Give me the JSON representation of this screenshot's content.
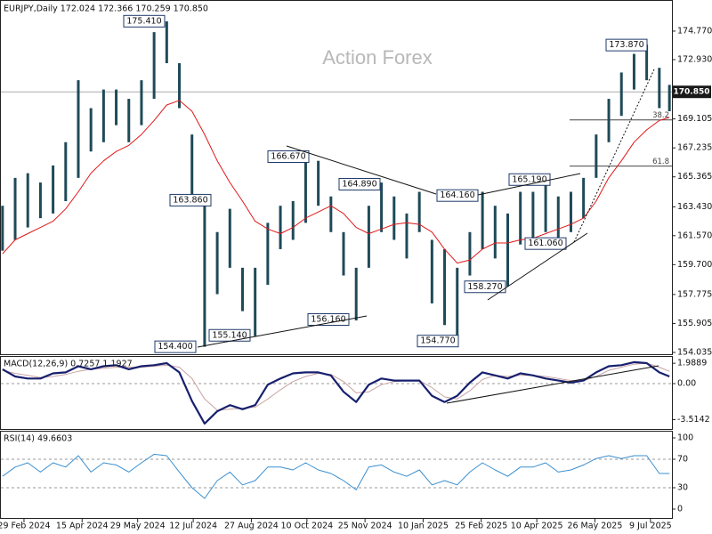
{
  "chart_data": [
    {
      "type": "ohlc",
      "title": "EURJPY,Daily  172.024 172.366 170.259 170.850",
      "watermark": "Action Forex",
      "x": [
        "2024-02-12",
        "2024-02-22",
        "2024-03-03",
        "2024-03-13",
        "2024-03-23",
        "2024-04-02",
        "2024-04-12",
        "2024-04-22",
        "2024-05-02",
        "2024-05-12",
        "2024-05-22",
        "2024-06-01",
        "2024-06-11",
        "2024-06-21",
        "2024-07-01",
        "2024-07-11",
        "2024-07-21",
        "2024-07-31",
        "2024-08-10",
        "2024-08-20",
        "2024-08-30",
        "2024-09-09",
        "2024-09-19",
        "2024-09-29",
        "2024-10-09",
        "2024-10-19",
        "2024-10-29",
        "2024-11-08",
        "2024-11-18",
        "2024-11-28",
        "2024-12-08",
        "2024-12-18",
        "2024-12-28",
        "2025-01-07",
        "2025-01-17",
        "2025-01-27",
        "2025-02-06",
        "2025-02-16",
        "2025-02-26",
        "2025-03-08",
        "2025-03-18",
        "2025-03-28",
        "2025-04-07",
        "2025-04-17",
        "2025-04-27",
        "2025-05-07",
        "2025-05-17",
        "2025-05-27",
        "2025-06-06",
        "2025-06-16",
        "2025-06-26",
        "2025-07-06",
        "2025-07-16",
        "2025-07-24"
      ],
      "high": [
        163.5,
        165.3,
        165.6,
        165.0,
        166.1,
        167.6,
        171.6,
        169.8,
        171.0,
        171.0,
        170.4,
        171.6,
        174.7,
        175.4,
        172.7,
        168.1,
        163.9,
        161.8,
        163.3,
        159.5,
        159.5,
        162.4,
        163.5,
        163.8,
        166.7,
        166.4,
        164.1,
        161.8,
        159.5,
        163.5,
        165.0,
        164.1,
        163.0,
        164.4,
        161.3,
        160.7,
        159.5,
        161.8,
        164.4,
        163.5,
        163.0,
        164.4,
        164.4,
        165.3,
        164.1,
        164.4,
        165.3,
        168.1,
        170.4,
        172.1,
        173.3,
        173.9,
        172.4,
        171.3
      ],
      "low": [
        160.6,
        161.3,
        162.1,
        162.7,
        163.0,
        163.8,
        165.3,
        167.0,
        167.6,
        168.7,
        167.6,
        168.7,
        170.4,
        172.7,
        169.8,
        163.5,
        154.4,
        157.8,
        159.5,
        156.7,
        155.1,
        158.4,
        160.7,
        161.3,
        162.4,
        163.5,
        161.8,
        159.0,
        156.1,
        159.5,
        161.8,
        161.3,
        160.1,
        161.8,
        157.2,
        155.8,
        154.8,
        159.0,
        160.7,
        160.1,
        158.3,
        161.0,
        161.0,
        161.8,
        161.3,
        161.8,
        162.7,
        165.3,
        167.6,
        169.3,
        171.0,
        171.6,
        169.8,
        169.6
      ],
      "bar_color": "#1f4a58",
      "ma": {
        "color": "#e01818",
        "values": [
          160.4,
          161.3,
          161.7,
          162.1,
          162.5,
          163.3,
          164.4,
          165.6,
          166.4,
          167.0,
          167.4,
          168.1,
          169.0,
          170.0,
          170.3,
          169.6,
          168.1,
          166.4,
          165.0,
          163.8,
          162.5,
          162.0,
          161.7,
          162.1,
          162.7,
          163.1,
          163.5,
          163.0,
          162.1,
          161.7,
          162.0,
          162.3,
          162.4,
          162.3,
          161.8,
          160.7,
          159.8,
          160.0,
          160.7,
          161.1,
          161.1,
          161.3,
          161.4,
          161.7,
          162.0,
          162.3,
          162.7,
          163.8,
          165.3,
          166.4,
          167.6,
          168.4,
          169.0,
          169.2
        ]
      },
      "xlim": [
        "2024-02-10",
        "2025-07-26"
      ],
      "xticks": [
        {
          "value": "2024-02-29",
          "label": "29 Feb 2024"
        },
        {
          "value": "2024-04-15",
          "label": "15 Apr 2024"
        },
        {
          "value": "2024-05-29",
          "label": "29 May 2024"
        },
        {
          "value": "2024-07-12",
          "label": "12 Jul 2024"
        },
        {
          "value": "2024-08-27",
          "label": "27 Aug 2024"
        },
        {
          "value": "2024-10-10",
          "label": "10 Oct 2024"
        },
        {
          "value": "2024-11-25",
          "label": "25 Nov 2024"
        },
        {
          "value": "2025-01-10",
          "label": "10 Jan 2025"
        },
        {
          "value": "2025-02-25",
          "label": "25 Feb 2025"
        },
        {
          "value": "2025-04-10",
          "label": "10 Apr 2025"
        },
        {
          "value": "2025-05-26",
          "label": "26 May 2025"
        },
        {
          "value": "2025-07-09",
          "label": "9 Jul 2025"
        }
      ],
      "ylim": [
        153.92,
        176.72
      ],
      "yticks": [
        {
          "value": 174.77,
          "label": "174.770"
        },
        {
          "value": 172.93,
          "label": "172.930"
        },
        {
          "value": 169.105,
          "label": "169.105"
        },
        {
          "value": 167.235,
          "label": "167.235"
        },
        {
          "value": 165.365,
          "label": "165.365"
        },
        {
          "value": 163.43,
          "label": "163.430"
        },
        {
          "value": 161.57,
          "label": "161.570"
        },
        {
          "value": 159.7,
          "label": "159.700"
        },
        {
          "value": 157.775,
          "label": "157.775"
        },
        {
          "value": 155.905,
          "label": "155.905"
        },
        {
          "value": 154.035,
          "label": "154.035"
        }
      ],
      "last": {
        "value": 170.85,
        "label": "170.850"
      },
      "annotations": [
        {
          "label": "175.410",
          "value": 175.41
        },
        {
          "label": "163.860",
          "value": 163.86
        },
        {
          "label": "154.400",
          "value": 154.4
        },
        {
          "label": "155.140",
          "value": 155.14
        },
        {
          "label": "156.160",
          "value": 156.16
        },
        {
          "label": "166.670",
          "value": 166.67
        },
        {
          "label": "164.890",
          "value": 164.89
        },
        {
          "label": "164.160",
          "value": 164.16
        },
        {
          "label": "165.190",
          "value": 165.19
        },
        {
          "label": "161.060",
          "value": 161.06
        },
        {
          "label": "158.270",
          "value": 158.27
        },
        {
          "label": "154.770",
          "value": 154.77
        },
        {
          "label": "173.870",
          "value": 173.87
        }
      ],
      "fib": [
        {
          "label": "38.2",
          "value": 169.04
        },
        {
          "label": "61.8",
          "value": 166.06
        }
      ]
    },
    {
      "type": "line",
      "title": "MACD(12,26,9) 0.7257 1.1927",
      "ylim": [
        -4.43,
        2.61
      ],
      "yticks": [
        1.9889,
        {
          "value": 0,
          "label": "0.00"
        },
        -3.5142
      ],
      "hlines": [
        0
      ],
      "series": [
        {
          "color": "#17206e",
          "width": 2.2,
          "values": [
            1.4,
            0.7,
            0.5,
            0.5,
            1.0,
            1.1,
            1.7,
            1.4,
            1.7,
            1.8,
            1.4,
            1.7,
            1.8,
            2.0,
            1.1,
            -1.7,
            -3.9,
            -2.7,
            -2.1,
            -2.5,
            -2.1,
            -0.1,
            0.5,
            1.0,
            1.1,
            1.1,
            0.8,
            -0.8,
            -1.8,
            -0.1,
            0.5,
            0.3,
            0.3,
            0.3,
            -1.2,
            -1.8,
            -1.2,
            0.1,
            1.1,
            0.8,
            0.5,
            1.0,
            0.8,
            0.5,
            0.3,
            0.1,
            0.3,
            1.1,
            1.7,
            1.8,
            2.1,
            2.0,
            1.1,
            0.7
          ]
        },
        {
          "color": "#c9a3a3",
          "width": 1,
          "values": [
            1.3,
            1.0,
            0.8,
            0.6,
            0.7,
            0.9,
            1.2,
            1.4,
            1.5,
            1.6,
            1.6,
            1.6,
            1.7,
            1.8,
            1.6,
            0.5,
            -1.5,
            -2.6,
            -2.5,
            -2.4,
            -2.3,
            -1.5,
            -0.6,
            0.2,
            0.7,
            1.0,
            0.9,
            0.2,
            -0.9,
            -0.8,
            -0.1,
            0.2,
            0.3,
            0.3,
            -0.4,
            -1.3,
            -1.5,
            -0.7,
            0.4,
            0.8,
            0.7,
            0.8,
            0.8,
            0.7,
            0.5,
            0.3,
            0.3,
            0.7,
            1.3,
            1.6,
            1.9,
            2.0,
            1.6,
            1.2
          ]
        }
      ]
    },
    {
      "type": "line",
      "title": "RSI(14) 49.6603",
      "ylim": [
        -12.5,
        108.75
      ],
      "yticks": [
        100,
        70,
        30,
        0
      ],
      "hlines": [
        70,
        30
      ],
      "series": [
        {
          "color": "#3a8fd0",
          "width": 1,
          "values": [
            46,
            59,
            65,
            52,
            65,
            59,
            75,
            52,
            65,
            62,
            52,
            65,
            77,
            75,
            52,
            30,
            15,
            40,
            52,
            34,
            40,
            59,
            59,
            55,
            65,
            55,
            50,
            40,
            27,
            59,
            62,
            52,
            46,
            55,
            34,
            40,
            34,
            52,
            65,
            55,
            46,
            59,
            59,
            65,
            52,
            55,
            62,
            71,
            75,
            71,
            75,
            75,
            50,
            50
          ]
        }
      ]
    }
  ]
}
